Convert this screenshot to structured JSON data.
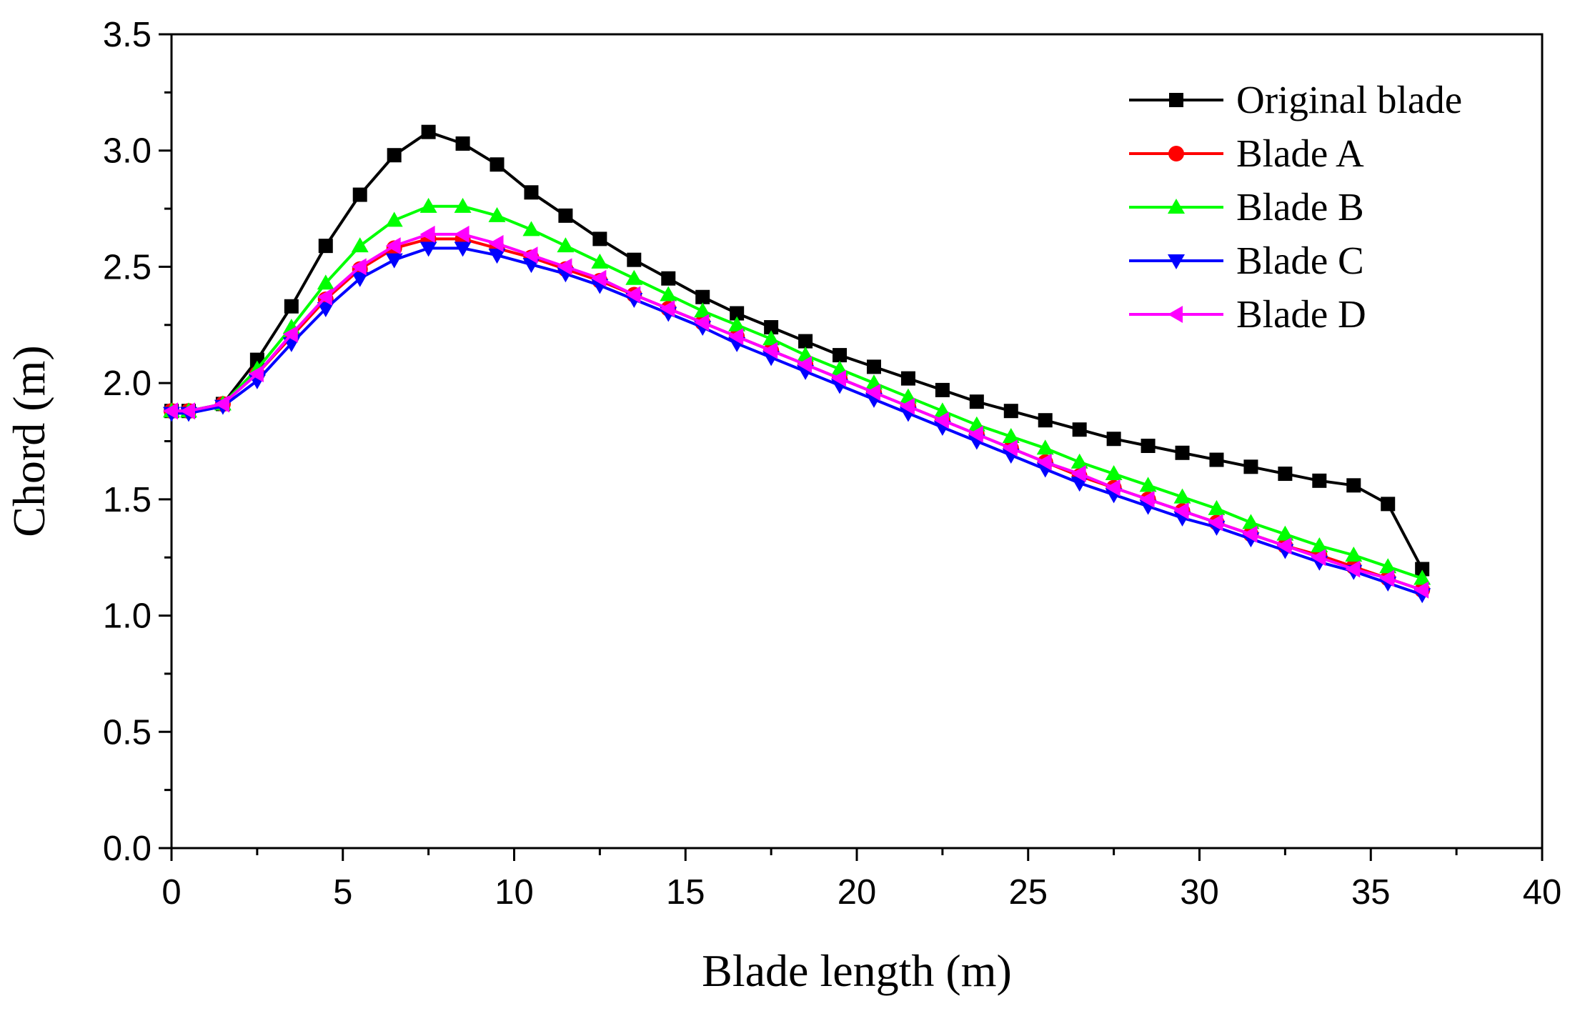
{
  "chart_data": {
    "type": "line",
    "title": "",
    "xlabel": "Blade length (m)",
    "ylabel": "Chord (m)",
    "xlim": [
      0,
      40
    ],
    "ylim": [
      0,
      3.5
    ],
    "xticks": [
      "0",
      "5",
      "10",
      "15",
      "20",
      "25",
      "30",
      "35",
      "40"
    ],
    "yticks": [
      "0.0",
      "0.5",
      "1.0",
      "1.5",
      "2.0",
      "2.5",
      "3.0",
      "3.5"
    ],
    "grid": false,
    "legend_position": "top-right",
    "x": [
      0,
      0.5,
      1.5,
      2.5,
      3.5,
      4.5,
      5.5,
      6.5,
      7.5,
      8.5,
      9.5,
      10.5,
      11.5,
      12.5,
      13.5,
      14.5,
      15.5,
      16.5,
      17.5,
      18.5,
      19.5,
      20.5,
      21.5,
      22.5,
      23.5,
      24.5,
      25.5,
      26.5,
      27.5,
      28.5,
      29.5,
      30.5,
      31.5,
      32.5,
      33.5,
      34.5,
      35.5,
      36.5
    ],
    "series": [
      {
        "name": "Original blade",
        "color": "#000000",
        "marker": "square",
        "values": [
          1.88,
          1.88,
          1.91,
          2.1,
          2.33,
          2.59,
          2.81,
          2.98,
          3.08,
          3.03,
          2.94,
          2.82,
          2.72,
          2.62,
          2.53,
          2.45,
          2.37,
          2.3,
          2.24,
          2.18,
          2.12,
          2.07,
          2.02,
          1.97,
          1.92,
          1.88,
          1.84,
          1.8,
          1.76,
          1.73,
          1.7,
          1.67,
          1.64,
          1.61,
          1.58,
          1.56,
          1.48,
          1.2
        ]
      },
      {
        "name": "Blade A",
        "color": "#ff0000",
        "marker": "circle",
        "values": [
          1.88,
          1.88,
          1.91,
          2.04,
          2.2,
          2.36,
          2.49,
          2.58,
          2.62,
          2.62,
          2.58,
          2.54,
          2.49,
          2.44,
          2.38,
          2.32,
          2.26,
          2.2,
          2.14,
          2.08,
          2.02,
          1.96,
          1.9,
          1.84,
          1.78,
          1.72,
          1.66,
          1.6,
          1.55,
          1.5,
          1.45,
          1.4,
          1.35,
          1.3,
          1.26,
          1.21,
          1.16,
          1.11
        ]
      },
      {
        "name": "Blade B",
        "color": "#00ff00",
        "marker": "triangle-up",
        "values": [
          1.88,
          1.88,
          1.91,
          2.06,
          2.24,
          2.43,
          2.59,
          2.7,
          2.76,
          2.76,
          2.72,
          2.66,
          2.59,
          2.52,
          2.45,
          2.38,
          2.31,
          2.25,
          2.19,
          2.12,
          2.06,
          2.0,
          1.94,
          1.88,
          1.82,
          1.77,
          1.72,
          1.66,
          1.61,
          1.56,
          1.51,
          1.46,
          1.4,
          1.35,
          1.3,
          1.26,
          1.21,
          1.16
        ]
      },
      {
        "name": "Blade C",
        "color": "#0000ff",
        "marker": "triangle-down",
        "values": [
          1.87,
          1.87,
          1.9,
          2.01,
          2.17,
          2.32,
          2.45,
          2.53,
          2.58,
          2.58,
          2.55,
          2.51,
          2.47,
          2.42,
          2.36,
          2.3,
          2.24,
          2.17,
          2.11,
          2.05,
          1.99,
          1.93,
          1.87,
          1.81,
          1.75,
          1.69,
          1.63,
          1.57,
          1.52,
          1.47,
          1.42,
          1.38,
          1.33,
          1.28,
          1.23,
          1.19,
          1.14,
          1.09
        ]
      },
      {
        "name": "Blade D",
        "color": "#ff00ff",
        "marker": "triangle-left",
        "values": [
          1.88,
          1.88,
          1.91,
          2.04,
          2.21,
          2.37,
          2.5,
          2.59,
          2.64,
          2.64,
          2.6,
          2.55,
          2.5,
          2.45,
          2.38,
          2.32,
          2.26,
          2.2,
          2.14,
          2.08,
          2.02,
          1.96,
          1.9,
          1.84,
          1.78,
          1.72,
          1.66,
          1.61,
          1.55,
          1.5,
          1.45,
          1.4,
          1.35,
          1.3,
          1.25,
          1.2,
          1.16,
          1.11
        ]
      }
    ]
  }
}
